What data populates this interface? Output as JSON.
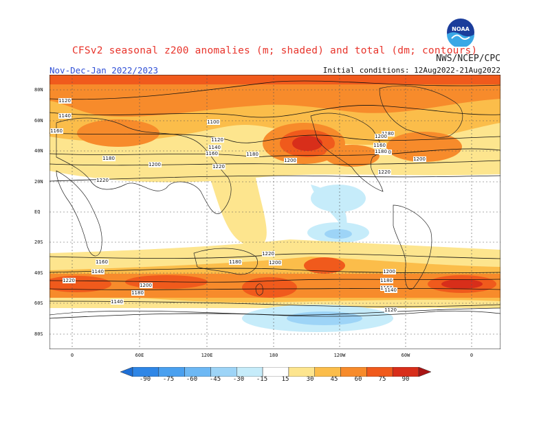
{
  "header": {
    "title": "CFSv2 seasonal z200 anomalies (m; shaded) and total (dm; contours)",
    "season": "Nov-Dec-Jan 2022/2023",
    "org": "NWS/NCEP/CPC",
    "init": "Initial conditions: 12Aug2022-21Aug2022",
    "logo_text": "NOAA"
  },
  "map": {
    "lat_labels": [
      "80N",
      "60N",
      "40N",
      "20N",
      "EQ",
      "20S",
      "40S",
      "60S",
      "80S"
    ],
    "lon_labels": [
      "0",
      "60E",
      "120E",
      "180",
      "120W",
      "60W",
      "0"
    ],
    "contour_labels": [
      "1120",
      "1140",
      "1160",
      "1180",
      "1200",
      "1220",
      "1100",
      "1120",
      "1140",
      "1160",
      "1180",
      "1200",
      "1220",
      "1180",
      "1200",
      "1140",
      "1160",
      "1180",
      "1200",
      "1220",
      "1220",
      "1200",
      "1180",
      "1160",
      "1140",
      "1220",
      "1200",
      "1180",
      "1180",
      "1200",
      "1160",
      "1140",
      "1140",
      "1120"
    ]
  },
  "colorbar": {
    "ticks": [
      "-90",
      "-75",
      "-60",
      "-45",
      "-30",
      "-15",
      "15",
      "30",
      "45",
      "60",
      "75",
      "90"
    ],
    "colors": [
      "#1e6fd6",
      "#2f86e6",
      "#4aa0ef",
      "#6db8f4",
      "#9dd4f7",
      "#c6ecfa",
      "#ffffff",
      "#fde58e",
      "#fbbd4a",
      "#f78b2b",
      "#f05a1c",
      "#d82e1a",
      "#a81414"
    ]
  },
  "colors": {
    "title": "#e8342b",
    "season": "#2f4fd6"
  }
}
